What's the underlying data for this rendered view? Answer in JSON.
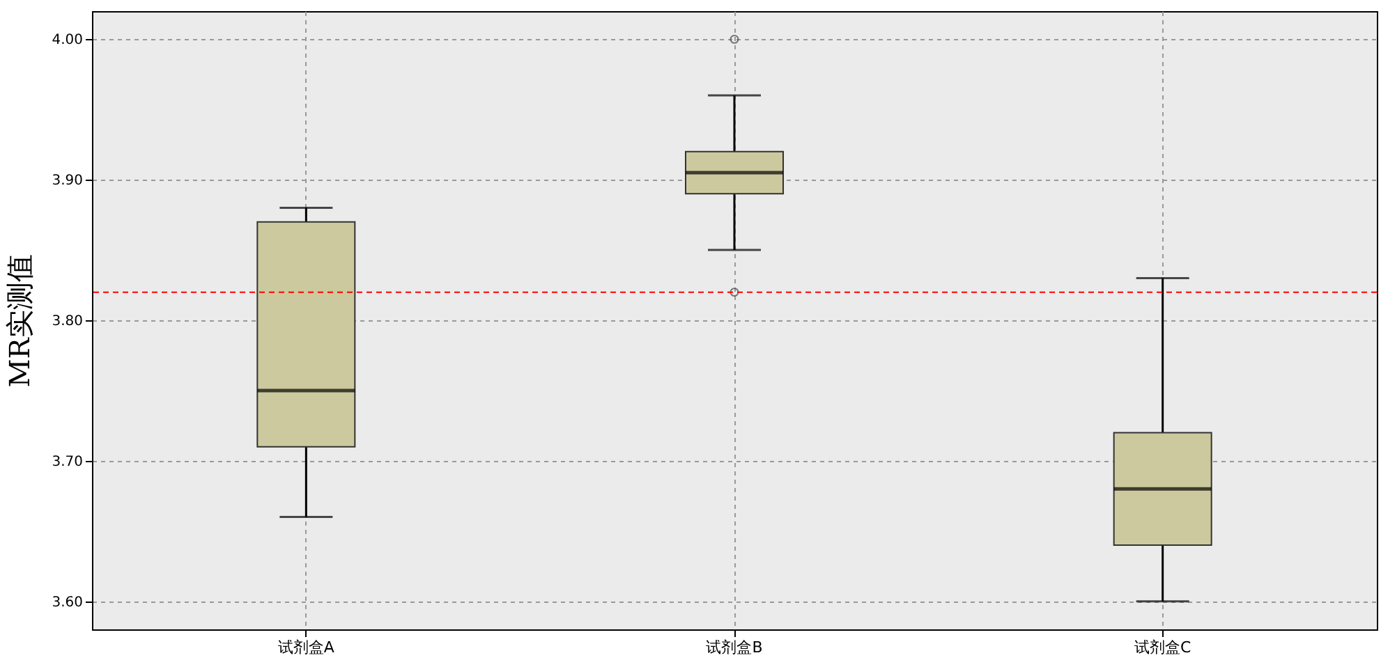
{
  "chart_data": {
    "type": "box",
    "ylabel": "MR实测值",
    "categories": [
      "试剂盒A",
      "试剂盒B",
      "试剂盒C"
    ],
    "boxes": [
      {
        "low": 3.66,
        "q1": 3.71,
        "median": 3.75,
        "q3": 3.87,
        "high": 3.88
      },
      {
        "low": 3.85,
        "q1": 3.89,
        "median": 3.905,
        "q3": 3.92,
        "high": 3.96,
        "outliers": [
          4.0,
          3.82
        ]
      },
      {
        "low": 3.6,
        "q1": 3.64,
        "median": 3.68,
        "q3": 3.72,
        "high": 3.83
      }
    ],
    "color": "#cdc99e",
    "ylim": [
      3.58,
      4.02
    ],
    "yticks": [
      {
        "value": 3.6,
        "label": "3.60"
      },
      {
        "value": 3.7,
        "label": "3.70"
      },
      {
        "value": 3.8,
        "label": "3.80"
      },
      {
        "value": 3.9,
        "label": "3.90"
      },
      {
        "value": 4.0,
        "label": "4.00"
      }
    ],
    "ref_lines": [
      {
        "axis": "y",
        "value": 3.82,
        "color": "#ff0000",
        "line_style": "dashed"
      }
    ],
    "grid": true
  }
}
